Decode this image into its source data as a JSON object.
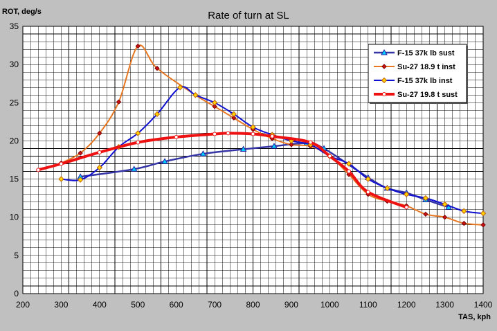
{
  "chart_data": {
    "type": "line",
    "title": "Rate of turn at SL",
    "ylabel": "ROT, deg/s",
    "xlabel": "TAS, kph",
    "xlim": [
      200,
      1400
    ],
    "ylim": [
      0,
      35
    ],
    "x_ticks": [
      200,
      300,
      400,
      500,
      600,
      700,
      800,
      900,
      1000,
      1100,
      1200,
      1300,
      1400
    ],
    "y_ticks": [
      0,
      5,
      10,
      15,
      20,
      25,
      30,
      35
    ],
    "grid": true,
    "legend_position": "top-right",
    "series": [
      {
        "name": "F-15 37k lb sust",
        "color": "#3535a5",
        "marker": "triangle",
        "points": [
          [
            350,
            15.3
          ],
          [
            490,
            16.3
          ],
          [
            570,
            17.3
          ],
          [
            670,
            18.3
          ],
          [
            775,
            18.9
          ],
          [
            855,
            19.3
          ],
          [
            940,
            19.7
          ],
          [
            985,
            19.0
          ],
          [
            1100,
            15.2
          ],
          [
            1150,
            13.8
          ],
          [
            1200,
            13.2
          ],
          [
            1250,
            12.3
          ],
          [
            1310,
            11.3
          ]
        ]
      },
      {
        "name": "Su-27 18.9 t inst",
        "color": "#e87722",
        "marker": "diamond-red",
        "points": [
          [
            300,
            17.1
          ],
          [
            350,
            18.4
          ],
          [
            400,
            21.0
          ],
          [
            450,
            25.1
          ],
          [
            500,
            32.4
          ],
          [
            550,
            29.5
          ],
          [
            650,
            26.0
          ],
          [
            700,
            24.5
          ],
          [
            750,
            23.0
          ],
          [
            800,
            21.5
          ],
          [
            850,
            20.3
          ],
          [
            900,
            19.5
          ],
          [
            950,
            19.3
          ],
          [
            1000,
            18.0
          ],
          [
            1050,
            15.6
          ],
          [
            1100,
            13.0
          ],
          [
            1150,
            12.1
          ],
          [
            1200,
            11.5
          ],
          [
            1250,
            10.4
          ],
          [
            1300,
            10.0
          ],
          [
            1350,
            9.2
          ],
          [
            1400,
            9.0
          ]
        ]
      },
      {
        "name": "F-15 37k lb inst",
        "color": "#1010d0",
        "marker": "diamond-orange",
        "points": [
          [
            300,
            15.0
          ],
          [
            350,
            14.9
          ],
          [
            400,
            16.5
          ],
          [
            450,
            19.2
          ],
          [
            500,
            21.0
          ],
          [
            550,
            23.5
          ],
          [
            610,
            27.0
          ],
          [
            650,
            26.0
          ],
          [
            700,
            25.0
          ],
          [
            750,
            23.5
          ],
          [
            800,
            21.8
          ],
          [
            850,
            20.8
          ],
          [
            900,
            20.0
          ],
          [
            950,
            19.5
          ],
          [
            1000,
            18.0
          ],
          [
            1050,
            17.0
          ],
          [
            1100,
            15.0
          ],
          [
            1150,
            13.8
          ],
          [
            1200,
            13.0
          ],
          [
            1250,
            12.5
          ],
          [
            1300,
            11.7
          ],
          [
            1350,
            10.8
          ],
          [
            1400,
            10.5
          ]
        ]
      },
      {
        "name": "Su-27 19.8 t sust",
        "color": "#ee1111",
        "marker": "circle",
        "points": [
          [
            240,
            16.2
          ],
          [
            300,
            17.0
          ],
          [
            400,
            18.5
          ],
          [
            500,
            19.8
          ],
          [
            600,
            20.5
          ],
          [
            700,
            20.9
          ],
          [
            735,
            21.0
          ],
          [
            800,
            20.9
          ],
          [
            850,
            20.6
          ],
          [
            950,
            19.8
          ],
          [
            1000,
            18.0
          ],
          [
            1050,
            16.0
          ],
          [
            1100,
            13.3
          ],
          [
            1200,
            11.3
          ]
        ]
      }
    ]
  }
}
